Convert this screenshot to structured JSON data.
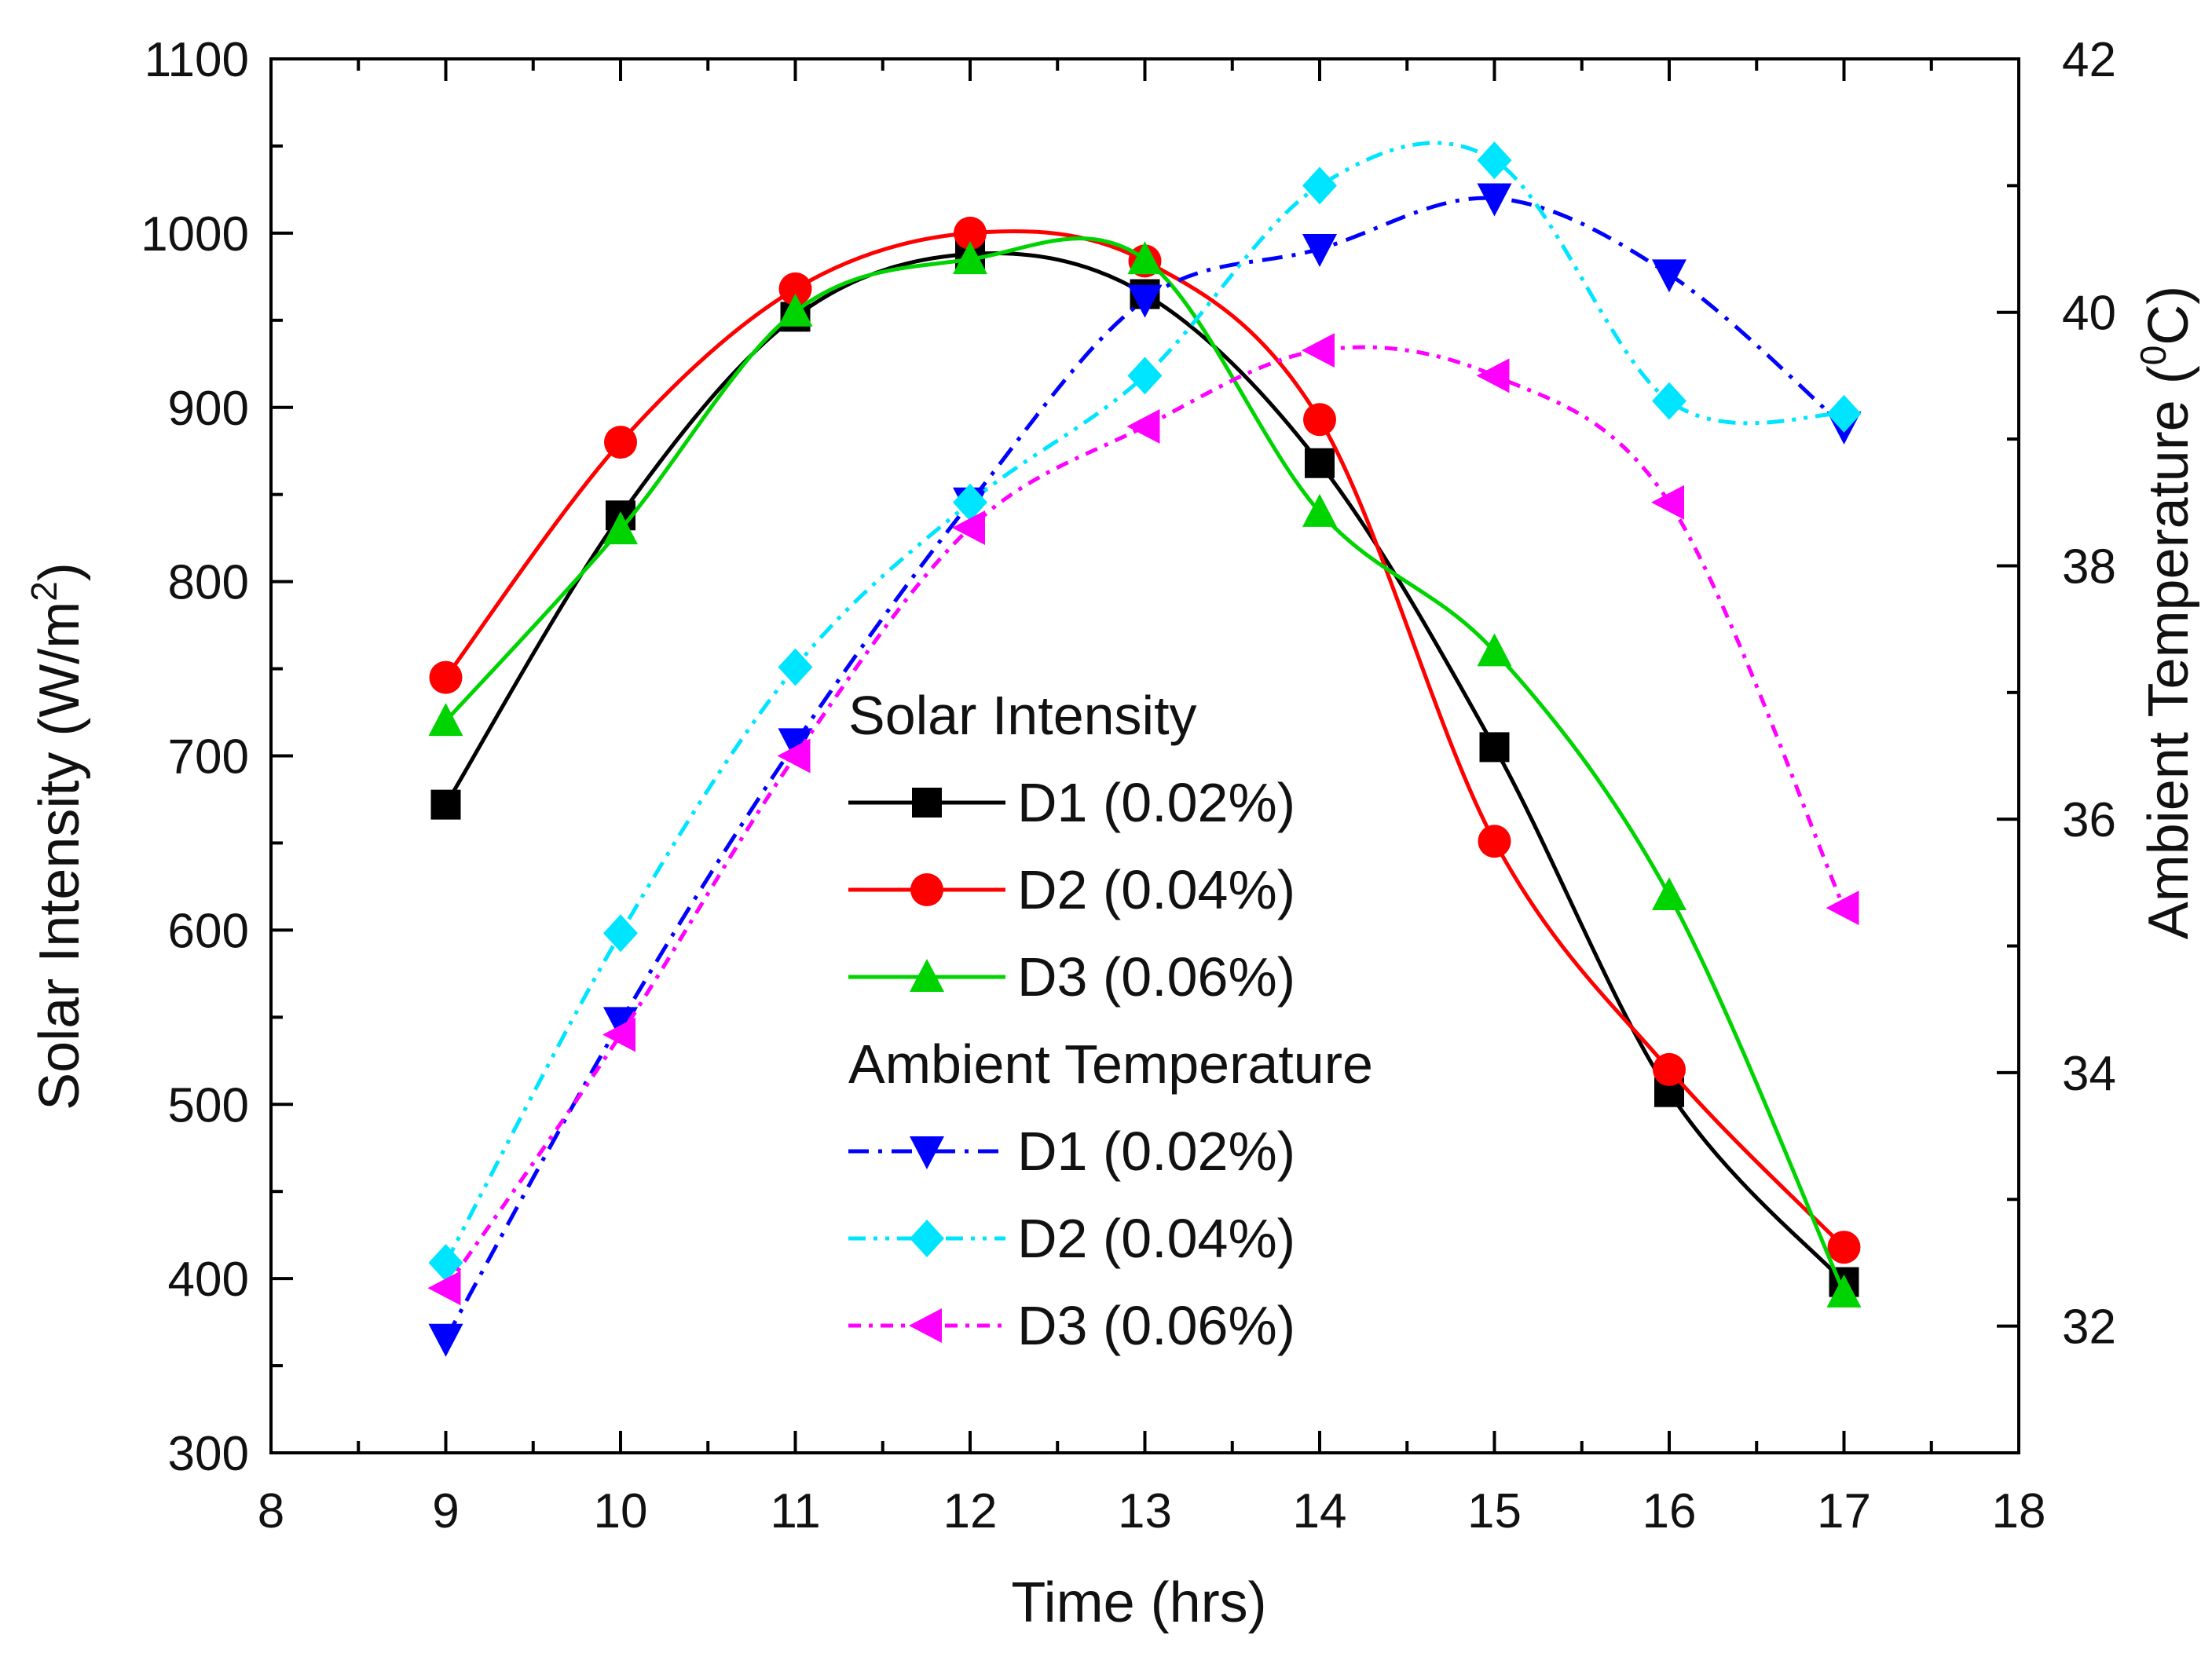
{
  "chart_data": {
    "type": "line",
    "title": "",
    "xlabel": "Time (hrs)",
    "ylabel_prefix": "Solar Intensity (W/m",
    "ylabel_sup": "2",
    "ylabel_suffix": ")",
    "y2label_prefix": "Ambient Temperature (",
    "y2label_sup": "0",
    "y2label_suffix": "C)",
    "xlim": [
      8,
      18
    ],
    "ylim": [
      300,
      1100
    ],
    "y2lim": [
      31,
      42
    ],
    "x_ticks": [
      8,
      9,
      10,
      11,
      12,
      13,
      14,
      15,
      16,
      17,
      18
    ],
    "y_ticks": [
      300,
      400,
      500,
      600,
      700,
      800,
      900,
      1000,
      1100
    ],
    "y2_ticks": [
      32,
      34,
      36,
      38,
      40,
      42
    ],
    "grid": false,
    "x": [
      9,
      10,
      11,
      12,
      13,
      14,
      15,
      16,
      17
    ],
    "legend": {
      "position": "center",
      "group1_title": "Solar Intensity",
      "group2_title": "Ambient Temperature"
    },
    "series": [
      {
        "id": "si-d1",
        "group": "solar",
        "axis": "left",
        "name": "D1 (0.02%)",
        "color": "#000000",
        "marker": "square",
        "dash": "solid",
        "values": [
          672,
          838,
          952,
          988,
          965,
          868,
          705,
          507,
          398
        ]
      },
      {
        "id": "si-d2",
        "group": "solar",
        "axis": "left",
        "name": "D2 (0.04%)",
        "color": "#ff0000",
        "marker": "circle",
        "dash": "solid",
        "values": [
          745,
          880,
          968,
          1000,
          984,
          893,
          651,
          520,
          418
        ]
      },
      {
        "id": "si-d3",
        "group": "solar",
        "axis": "left",
        "name": "D3 (0.06%)",
        "color": "#00d400",
        "marker": "triangle-up",
        "dash": "solid",
        "values": [
          720,
          830,
          955,
          985,
          985,
          840,
          760,
          620,
          392
        ]
      },
      {
        "id": "at-d1",
        "group": "ambient",
        "axis": "right",
        "name": "D1 (0.02%)",
        "color": "#0000ff",
        "marker": "triangle-down",
        "dash": "dash-dot",
        "values": [
          31.9,
          34.4,
          36.6,
          38.5,
          40.1,
          40.5,
          40.9,
          40.3,
          39.1
        ]
      },
      {
        "id": "at-d2",
        "group": "ambient",
        "axis": "right",
        "name": "D2 (0.04%)",
        "color": "#00e5ff",
        "marker": "diamond",
        "dash": "dash-dot-dot",
        "values": [
          32.5,
          35.1,
          37.2,
          38.5,
          39.5,
          41.0,
          41.2,
          39.3,
          39.2
        ]
      },
      {
        "id": "at-d3",
        "group": "ambient",
        "axis": "right",
        "name": "D3 (0.06%)",
        "color": "#ff00ff",
        "marker": "triangle-left",
        "dash": "short-dash-dot",
        "values": [
          32.3,
          34.3,
          36.5,
          38.3,
          39.1,
          39.7,
          39.5,
          38.5,
          35.3
        ]
      }
    ]
  }
}
